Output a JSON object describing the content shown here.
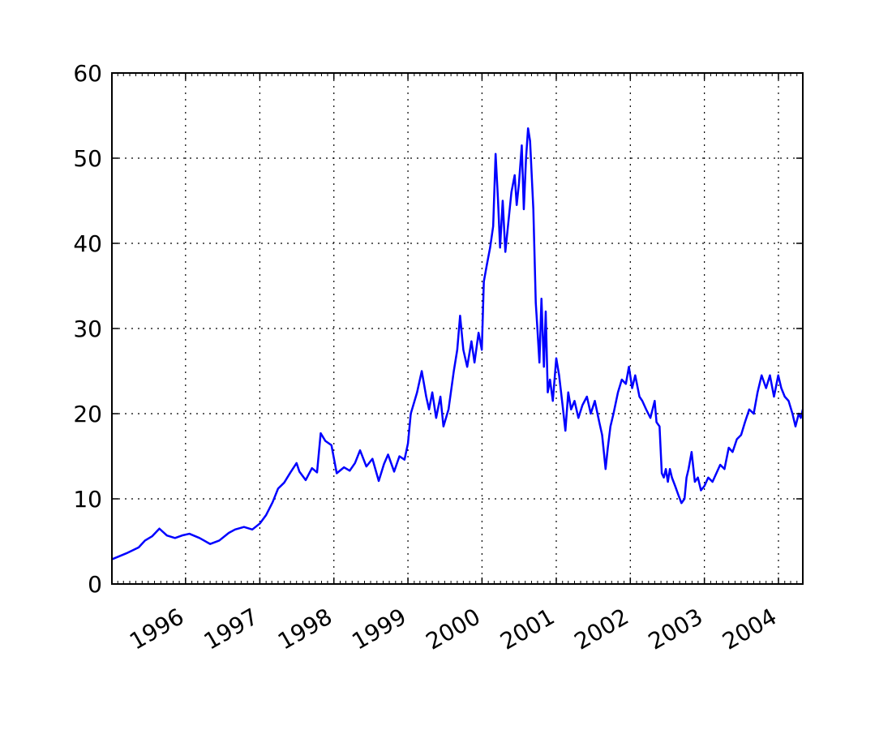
{
  "chart_data": {
    "type": "line",
    "title": "",
    "xlabel": "",
    "ylabel": "",
    "xlim": [
      "1995-01-03",
      "2004-04-30"
    ],
    "ylim": [
      0,
      60
    ],
    "x_ticks": [
      "1996",
      "1997",
      "1998",
      "1999",
      "2000",
      "2001",
      "2002",
      "2003",
      "2004"
    ],
    "y_ticks": [
      "0",
      "10",
      "20",
      "30",
      "40",
      "50",
      "60"
    ],
    "grid": true,
    "line_color": "#0000ff",
    "series": [
      {
        "x": [
          "1995-01-03",
          "1995-03-15",
          "1995-05-15",
          "1995-06-15",
          "1995-07-20",
          "1995-08-25",
          "1995-10-01",
          "1995-11-10",
          "1995-12-15",
          "1996-01-20",
          "1996-03-10",
          "1996-05-01",
          "1996-06-15",
          "1996-08-01",
          "1996-09-01",
          "1996-10-15",
          "1996-11-25",
          "1997-01-01",
          "1997-02-01",
          "1997-03-05",
          "1997-04-01",
          "1997-05-01",
          "1997-06-01",
          "1997-07-01",
          "1997-07-15",
          "1997-08-15",
          "1997-09-15",
          "1997-10-10",
          "1997-10-28",
          "1997-11-20",
          "1997-12-20",
          "1998-01-15",
          "1998-02-20",
          "1998-03-20",
          "1998-04-15",
          "1998-05-10",
          "1998-06-10",
          "1998-07-10",
          "1998-08-10",
          "1998-09-05",
          "1998-09-25",
          "1998-10-25",
          "1998-11-20",
          "1998-12-15",
          "1999-01-01",
          "1999-01-15",
          "1999-02-15",
          "1999-03-10",
          "1999-04-01",
          "1999-04-15",
          "1999-05-01",
          "1999-05-20",
          "1999-06-10",
          "1999-06-25",
          "1999-07-20",
          "1999-08-15",
          "1999-09-01",
          "1999-09-15",
          "1999-10-01",
          "1999-10-20",
          "1999-11-10",
          "1999-11-25",
          "1999-12-15",
          "1999-12-31",
          "2000-01-10",
          "2000-01-25",
          "2000-02-10",
          "2000-02-25",
          "2000-03-08",
          "2000-03-20",
          "2000-03-30",
          "2000-04-12",
          "2000-04-25",
          "2000-05-10",
          "2000-05-25",
          "2000-06-10",
          "2000-06-20",
          "2000-07-01",
          "2000-07-15",
          "2000-07-25",
          "2000-08-05",
          "2000-08-15",
          "2000-08-25",
          "2000-09-10",
          "2000-09-22",
          "2000-09-30",
          "2000-10-10",
          "2000-10-20",
          "2000-11-01",
          "2000-11-10",
          "2000-11-20",
          "2000-12-01",
          "2000-12-15",
          "2001-01-01",
          "2001-01-15",
          "2001-02-01",
          "2001-02-15",
          "2001-03-01",
          "2001-03-15",
          "2001-04-01",
          "2001-04-20",
          "2001-05-10",
          "2001-06-01",
          "2001-06-20",
          "2001-07-10",
          "2001-08-01",
          "2001-08-15",
          "2001-09-01",
          "2001-09-12",
          "2001-09-25",
          "2001-10-10",
          "2001-11-01",
          "2001-11-20",
          "2001-12-10",
          "2001-12-25",
          "2002-01-10",
          "2002-01-25",
          "2002-02-15",
          "2002-03-01",
          "2002-03-20",
          "2002-04-10",
          "2002-05-01",
          "2002-05-10",
          "2002-05-25",
          "2002-06-05",
          "2002-06-15",
          "2002-06-25",
          "2002-07-05",
          "2002-07-15",
          "2002-07-25",
          "2002-08-10",
          "2002-08-25",
          "2002-09-10",
          "2002-09-25",
          "2002-10-05",
          "2002-10-15",
          "2002-10-30",
          "2002-11-15",
          "2002-11-30",
          "2002-12-15",
          "2003-01-01",
          "2003-01-20",
          "2003-02-10",
          "2003-03-01",
          "2003-03-20",
          "2003-04-10",
          "2003-05-01",
          "2003-05-20",
          "2003-06-10",
          "2003-07-01",
          "2003-07-20",
          "2003-08-10",
          "2003-09-01",
          "2003-09-20",
          "2003-10-10",
          "2003-11-01",
          "2003-11-20",
          "2003-12-10",
          "2003-12-31",
          "2004-01-15",
          "2004-02-01",
          "2004-02-20",
          "2004-03-10",
          "2004-03-25",
          "2004-04-10",
          "2004-04-20",
          "2004-04-30"
        ],
        "y": [
          2.9,
          3.6,
          4.3,
          5.1,
          5.6,
          6.5,
          5.7,
          5.4,
          5.7,
          5.9,
          5.4,
          4.7,
          5.1,
          6.0,
          6.4,
          6.7,
          6.4,
          7.1,
          8.1,
          9.6,
          11.2,
          11.9,
          13.1,
          14.2,
          13.2,
          12.2,
          13.6,
          13.1,
          17.7,
          16.8,
          16.3,
          13.0,
          13.7,
          13.3,
          14.2,
          15.7,
          13.8,
          14.7,
          12.1,
          14.1,
          15.2,
          13.2,
          15.0,
          14.6,
          16.5,
          20.0,
          22.5,
          25.0,
          22.0,
          20.5,
          22.5,
          19.5,
          22.0,
          18.5,
          20.5,
          25.0,
          27.5,
          31.5,
          27.5,
          25.5,
          28.5,
          26.0,
          29.5,
          27.5,
          35.5,
          37.5,
          39.5,
          42.0,
          50.5,
          45.0,
          39.5,
          45.0,
          39.0,
          42.5,
          46.0,
          48.0,
          44.5,
          47.0,
          51.5,
          44.0,
          50.0,
          53.5,
          52.0,
          44.0,
          33.0,
          30.0,
          26.0,
          33.5,
          25.5,
          32.0,
          22.5,
          24.0,
          21.5,
          26.5,
          24.5,
          21.0,
          18.0,
          22.5,
          20.5,
          21.5,
          19.5,
          21.0,
          22.0,
          20.0,
          21.5,
          19.0,
          17.5,
          13.5,
          16.0,
          18.5,
          20.0,
          22.5,
          24.0,
          23.5,
          25.5,
          23.0,
          24.5,
          22.0,
          21.5,
          20.5,
          19.5,
          21.5,
          19.0,
          18.5,
          13.0,
          12.5,
          13.5,
          12.0,
          13.5,
          12.5,
          11.5,
          10.5,
          9.5,
          10.0,
          12.5,
          13.5,
          15.5,
          12.0,
          12.5,
          11.0,
          11.5,
          12.5,
          12.0,
          13.0,
          14.0,
          13.5,
          16.0,
          15.5,
          17.0,
          17.5,
          19.0,
          20.5,
          20.0,
          22.5,
          24.5,
          23.0,
          24.5,
          22.0,
          24.5,
          23.0,
          22.0,
          21.5,
          20.0,
          18.5,
          20.0,
          19.5,
          20.5
        ]
      }
    ]
  }
}
